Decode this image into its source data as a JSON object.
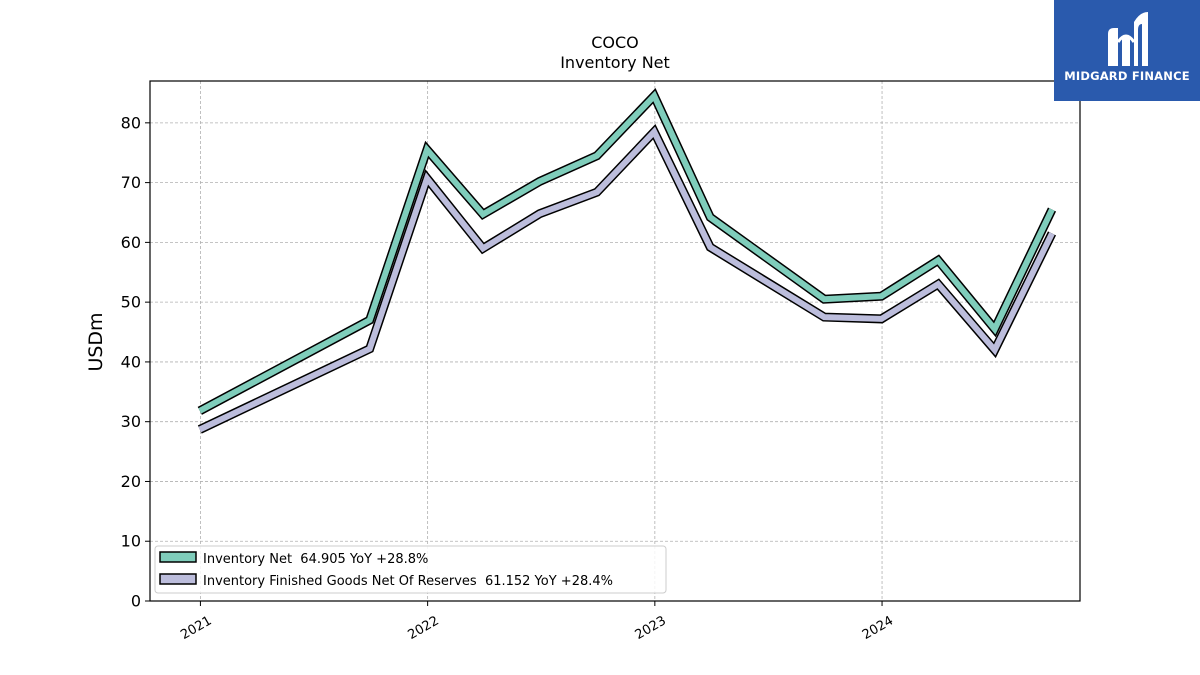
{
  "brand": {
    "name": "MIDGARD FINANCE",
    "bg": "#2a5aad"
  },
  "chart_data": {
    "type": "line",
    "title": "COCO",
    "subtitle": "Inventory Net",
    "xlabel": "",
    "ylabel": "USDm",
    "ylim": [
      0,
      87
    ],
    "yticks": [
      0,
      10,
      20,
      30,
      40,
      50,
      60,
      70,
      80
    ],
    "xlim": [
      "2020-10-12",
      "2024-11-14"
    ],
    "xticks": [
      {
        "label": "2021",
        "date": "2021-01-01"
      },
      {
        "label": "2022",
        "date": "2022-01-01"
      },
      {
        "label": "2023",
        "date": "2023-01-01"
      },
      {
        "label": "2024",
        "date": "2024-01-01"
      }
    ],
    "grid": true,
    "legend_position": "lower-left",
    "x": [
      "2020-12-31",
      "2021-09-30",
      "2021-12-31",
      "2022-03-31",
      "2022-06-30",
      "2022-09-30",
      "2022-12-31",
      "2023-03-31",
      "2023-09-30",
      "2023-12-31",
      "2024-03-31",
      "2024-06-30",
      "2024-09-30"
    ],
    "series": [
      {
        "name": "Inventory Net",
        "legend": "Inventory Net  64.905 YoY +28.8%",
        "color": "#7fcdbb",
        "values": [
          31.8,
          47.0,
          75.5,
          64.7,
          70.2,
          74.5,
          84.5,
          64.2,
          50.5,
          51.0,
          57.0,
          45.5,
          65.5
        ]
      },
      {
        "name": "Inventory Finished Goods Net Of Reserves",
        "legend": "Inventory Finished Goods Net Of Reserves  61.152 YoY +28.4%",
        "color": "#bcbddc",
        "values": [
          28.7,
          42.2,
          70.7,
          59.0,
          64.8,
          68.4,
          78.5,
          59.2,
          47.5,
          47.2,
          53.0,
          42.0,
          61.5
        ]
      }
    ]
  }
}
